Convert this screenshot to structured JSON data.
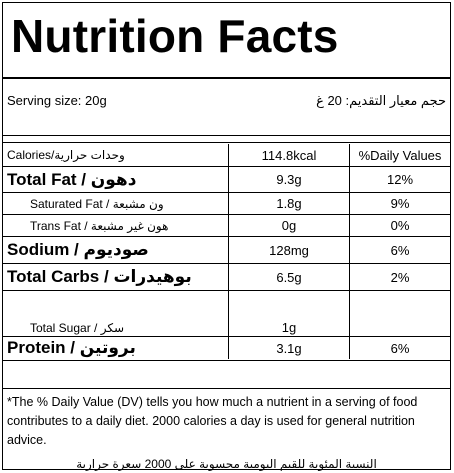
{
  "title": "Nutrition Facts",
  "serving": {
    "label_en": "Serving size: 20g",
    "label_ar": "حجم معيار التقديم: 20 غ"
  },
  "header_row": {
    "col1": "Calories/وحدات حرارية",
    "col2": "114.8kcal",
    "col3": "%Daily Values"
  },
  "rows": [
    {
      "label": "Total Fat / دهون",
      "amount": "9.3g",
      "dv": "12%"
    },
    {
      "label": "Saturated Fat / ون مشبعة",
      "amount": "1.8g",
      "dv": "9%"
    },
    {
      "label": "Trans Fat / هون غير مشبعة",
      "amount": "0g",
      "dv": "0%"
    },
    {
      "label": "Sodium / صوديوم",
      "amount": "128mg",
      "dv": "6%"
    },
    {
      "label": "Total Carbs / بوهيدرات",
      "amount": "6.5g",
      "dv": "2%"
    },
    {
      "label": "Total Sugar / سكر",
      "amount": "1g",
      "dv": ""
    },
    {
      "label": "Protein / بروتين",
      "amount": "3.1g",
      "dv": "6%"
    }
  ],
  "footer": {
    "en": "*The % Daily Value (DV) tells you how much a nutrient in a serving of food contributes to a daily diet. 2000 calories a day is used for general nutrition advice.",
    "ar": "النسبة المئوية للقيم اليومية محسوبة على 2000 سعرة حرارية"
  }
}
